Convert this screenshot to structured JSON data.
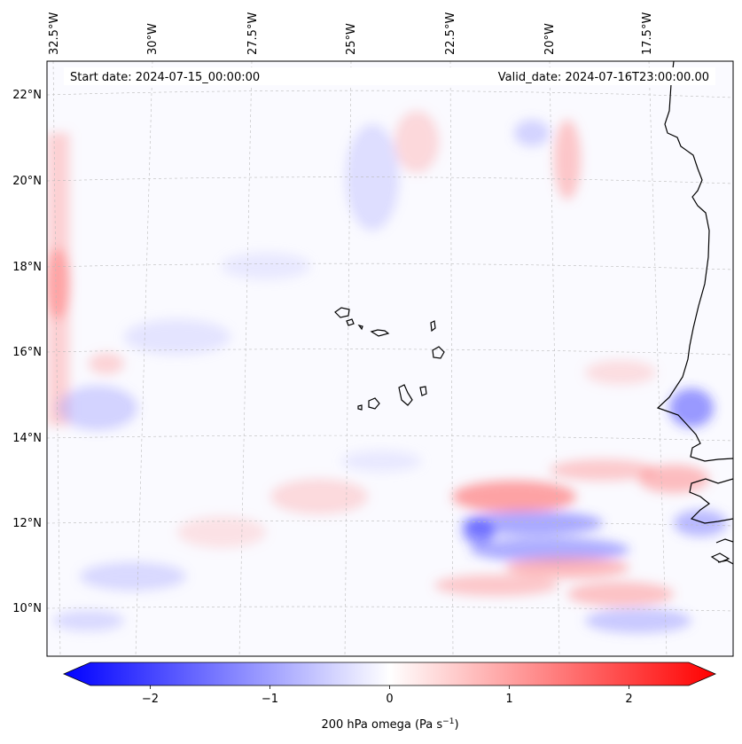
{
  "annotations": {
    "start": "Start date: 2024-07-15_00:00:00",
    "valid": "Valid_date: 2024-07-16T23:00:00.00"
  },
  "axes": {
    "lon_labels": [
      {
        "value": -32.5,
        "text": "32.5°W"
      },
      {
        "value": -30.0,
        "text": "30°W"
      },
      {
        "value": -27.5,
        "text": "27.5°W"
      },
      {
        "value": -25.0,
        "text": "25°W"
      },
      {
        "value": -22.5,
        "text": "22.5°W"
      },
      {
        "value": -20.0,
        "text": "20°W"
      },
      {
        "value": -17.5,
        "text": "17.5°W"
      }
    ],
    "lat_labels": [
      {
        "value": 22,
        "text": "22°N"
      },
      {
        "value": 20,
        "text": "20°N"
      },
      {
        "value": 18,
        "text": "18°N"
      },
      {
        "value": 16,
        "text": "16°N"
      },
      {
        "value": 14,
        "text": "14°N"
      },
      {
        "value": 12,
        "text": "12°N"
      },
      {
        "value": 10,
        "text": "10°N"
      }
    ],
    "lon_range": [
      -33.5,
      -15.4
    ],
    "lat_range": [
      8.9,
      22.8
    ]
  },
  "colorbar": {
    "label_main": "200 hPa omega (Pa s",
    "label_exp": "−1",
    "label_end": ")",
    "range": [
      -2.6,
      2.6
    ],
    "ticks": [
      {
        "value": -2,
        "text": "−2"
      },
      {
        "value": -1,
        "text": "−1"
      },
      {
        "value": 0,
        "text": "0"
      },
      {
        "value": 1,
        "text": "1"
      },
      {
        "value": 2,
        "text": "2"
      }
    ],
    "negative_color": "#0000ff",
    "neutral_color": "#ffffff",
    "positive_color": "#ff0000"
  },
  "colors": {
    "coastline": "#000000",
    "grid": "#bbbbbb",
    "field_background": "#fafaff"
  }
}
